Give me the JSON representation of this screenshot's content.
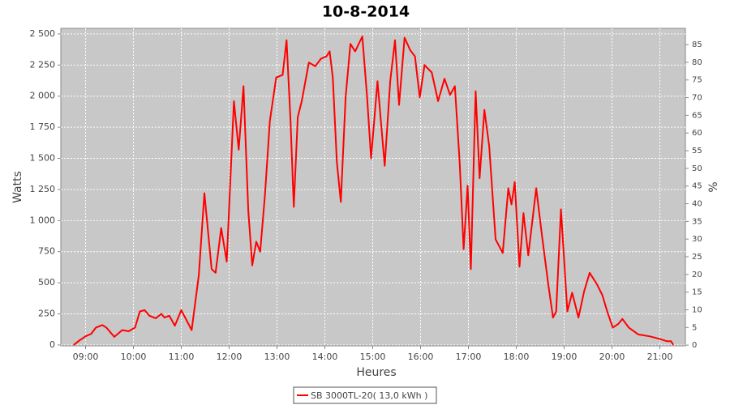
{
  "chart_data": {
    "type": "line",
    "title": "10-8-2014",
    "xlabel": "Heures",
    "ylabel": "Watts",
    "y2label": "%",
    "x": [
      "08:45",
      "08:53",
      "09:00",
      "09:07",
      "09:13",
      "09:21",
      "09:26",
      "09:36",
      "09:46",
      "09:54",
      "10:02",
      "10:08",
      "10:14",
      "10:20",
      "10:28",
      "10:35",
      "10:39",
      "10:45",
      "10:52",
      "11:00",
      "11:13",
      "11:22",
      "11:29",
      "11:38",
      "11:43",
      "11:50",
      "11:57",
      "12:06",
      "12:12",
      "12:18",
      "12:24",
      "12:29",
      "12:34",
      "12:39",
      "12:45",
      "12:51",
      "12:59",
      "13:07",
      "13:12",
      "13:17",
      "13:21",
      "13:26",
      "13:31",
      "13:40",
      "13:48",
      "13:55",
      "14:02",
      "14:06",
      "14:10",
      "14:15",
      "14:20",
      "14:26",
      "14:32",
      "14:38",
      "14:47",
      "14:53",
      "14:58",
      "15:06",
      "15:15",
      "15:22",
      "15:28",
      "15:33",
      "15:40",
      "15:47",
      "15:53",
      "15:59",
      "16:05",
      "16:14",
      "16:22",
      "16:30",
      "16:37",
      "16:43",
      "16:49",
      "16:54",
      "16:59",
      "17:03",
      "17:09",
      "17:14",
      "17:20",
      "17:26",
      "17:34",
      "17:43",
      "17:50",
      "17:54",
      "17:58",
      "18:04",
      "18:09",
      "18:15",
      "18:25",
      "18:32",
      "18:40",
      "18:46",
      "18:50",
      "18:56",
      "19:04",
      "19:10",
      "19:18",
      "19:25",
      "19:32",
      "19:41",
      "19:48",
      "19:54",
      "20:01",
      "20:08",
      "20:13",
      "20:21",
      "20:33",
      "20:47",
      "20:59",
      "21:09",
      "21:14",
      "21:17"
    ],
    "series": [
      {
        "name": "SB 3000TL-20( 13,0 kWh )",
        "color": "#ff0000",
        "values": [
          0,
          40,
          70,
          90,
          140,
          160,
          140,
          65,
          120,
          110,
          140,
          270,
          280,
          235,
          215,
          250,
          220,
          235,
          155,
          280,
          120,
          560,
          1220,
          610,
          580,
          940,
          670,
          1960,
          1570,
          2080,
          1080,
          640,
          830,
          750,
          1210,
          1800,
          2150,
          2170,
          2450,
          1800,
          1110,
          1830,
          1960,
          2270,
          2240,
          2300,
          2320,
          2360,
          2150,
          1470,
          1150,
          1990,
          2420,
          2360,
          2480,
          1990,
          1500,
          2120,
          1440,
          2120,
          2450,
          1930,
          2470,
          2370,
          2320,
          1990,
          2250,
          2190,
          1960,
          2140,
          2010,
          2080,
          1470,
          770,
          1280,
          610,
          2040,
          1340,
          1890,
          1600,
          850,
          740,
          1260,
          1130,
          1310,
          630,
          1060,
          720,
          1260,
          890,
          490,
          220,
          270,
          1090,
          270,
          420,
          220,
          430,
          580,
          490,
          400,
          270,
          140,
          170,
          210,
          140,
          85,
          70,
          50,
          30,
          30,
          0
        ]
      }
    ],
    "xlim": [
      "08:29",
      "21:32"
    ],
    "xticks": [
      "09:00",
      "10:00",
      "11:00",
      "12:00",
      "13:00",
      "14:00",
      "15:00",
      "16:00",
      "17:00",
      "18:00",
      "19:00",
      "20:00",
      "21:00"
    ],
    "ylim": [
      -7,
      2545
    ],
    "yticks": [
      0,
      250,
      500,
      750,
      {
        "value": 1000,
        "label": "1 000"
      },
      {
        "value": 1250,
        "label": "1 250"
      },
      {
        "value": 1500,
        "label": "1 500"
      },
      {
        "value": 1750,
        "label": "1 750"
      },
      {
        "value": 2000,
        "label": "2 000"
      },
      {
        "value": 2250,
        "label": "2 250"
      },
      {
        "value": 2500,
        "label": "2 500"
      }
    ],
    "y2lim": [
      -0.2,
      89.6
    ],
    "y2ticks": [
      0,
      5,
      10,
      15,
      20,
      25,
      30,
      35,
      40,
      45,
      50,
      55,
      60,
      65,
      70,
      75,
      80,
      85
    ],
    "grid": true
  }
}
